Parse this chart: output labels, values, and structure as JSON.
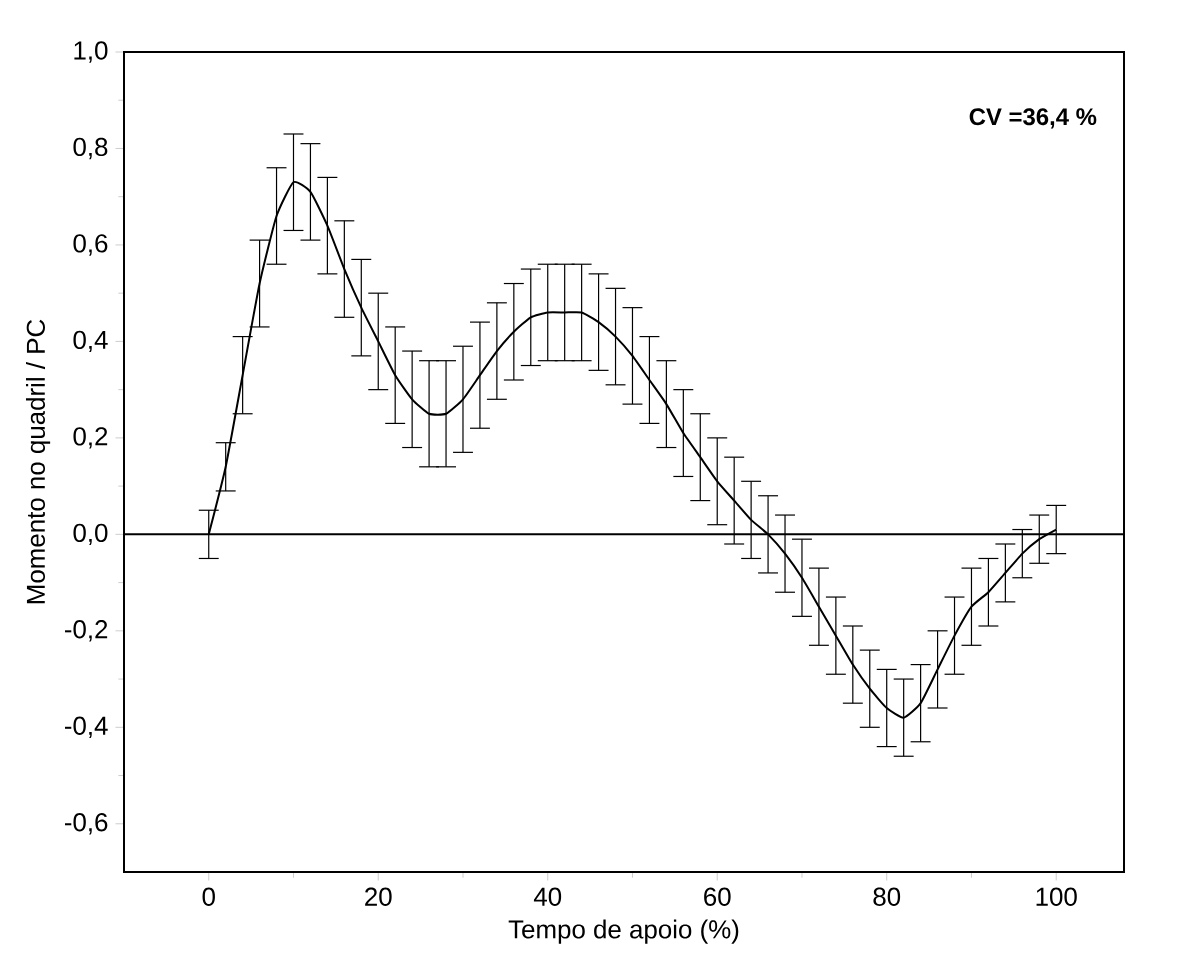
{
  "chart_data": {
    "type": "line",
    "xlabel": "Tempo de apoio (%)",
    "ylabel": "Momento no quadril / PC",
    "annotations": [
      "CV =36,4 %"
    ],
    "x": [
      0,
      2,
      4,
      6,
      8,
      10,
      12,
      14,
      16,
      18,
      20,
      22,
      24,
      26,
      28,
      30,
      32,
      34,
      36,
      38,
      40,
      42,
      44,
      46,
      48,
      50,
      52,
      54,
      56,
      58,
      60,
      62,
      64,
      66,
      68,
      70,
      72,
      74,
      76,
      78,
      80,
      82,
      84,
      86,
      88,
      90,
      92,
      94,
      96,
      98,
      100
    ],
    "series": [
      {
        "color": "#000000",
        "values": [
          0.0,
          0.14,
          0.33,
          0.52,
          0.66,
          0.73,
          0.71,
          0.64,
          0.55,
          0.47,
          0.4,
          0.33,
          0.28,
          0.25,
          0.25,
          0.28,
          0.33,
          0.38,
          0.42,
          0.45,
          0.46,
          0.46,
          0.46,
          0.44,
          0.41,
          0.37,
          0.32,
          0.27,
          0.21,
          0.16,
          0.11,
          0.07,
          0.03,
          0.0,
          -0.04,
          -0.09,
          -0.15,
          -0.21,
          -0.27,
          -0.32,
          -0.36,
          -0.38,
          -0.35,
          -0.28,
          -0.21,
          -0.15,
          -0.12,
          -0.08,
          -0.04,
          -0.01,
          0.01
        ],
        "errors": [
          0.05,
          0.05,
          0.08,
          0.09,
          0.1,
          0.1,
          0.1,
          0.1,
          0.1,
          0.1,
          0.1,
          0.1,
          0.1,
          0.11,
          0.11,
          0.11,
          0.11,
          0.1,
          0.1,
          0.1,
          0.1,
          0.1,
          0.1,
          0.1,
          0.1,
          0.1,
          0.09,
          0.09,
          0.09,
          0.09,
          0.09,
          0.09,
          0.08,
          0.08,
          0.08,
          0.08,
          0.08,
          0.08,
          0.08,
          0.08,
          0.08,
          0.08,
          0.08,
          0.08,
          0.08,
          0.08,
          0.07,
          0.06,
          0.05,
          0.05,
          0.05
        ]
      }
    ],
    "xlim": [
      -10,
      108
    ],
    "ylim": [
      -0.7,
      1.0
    ],
    "xticks": [
      0,
      20,
      40,
      60,
      80,
      100
    ],
    "yticks": [
      {
        "value": -0.6,
        "label": "-0,6"
      },
      {
        "value": -0.4,
        "label": "-0,4"
      },
      {
        "value": -0.2,
        "label": "-0,2"
      },
      {
        "value": 0,
        "label": "0,0"
      },
      {
        "value": 0.2,
        "label": "0,2"
      },
      {
        "value": 0.4,
        "label": "0,4"
      },
      {
        "value": 0.6,
        "label": "0,6"
      },
      {
        "value": 0.8,
        "label": "0,8"
      },
      {
        "value": 1.0,
        "label": "1,0"
      }
    ],
    "ref_lines": [
      {
        "axis": "y",
        "value": 0
      }
    ],
    "grid": false,
    "marker": "none",
    "line_style": "solid"
  }
}
